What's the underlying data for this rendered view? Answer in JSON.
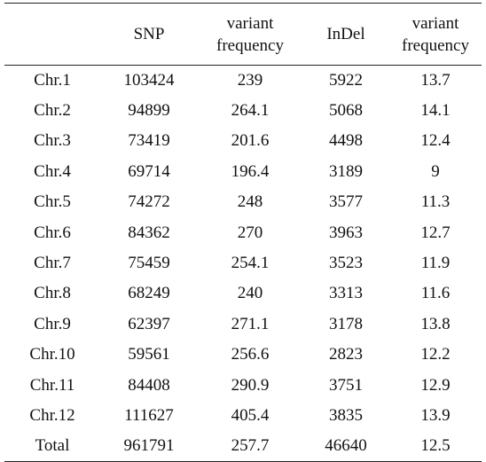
{
  "table": {
    "headers": [
      "",
      "SNP",
      "variant\nfrequency",
      "InDel",
      "variant\nfrequency"
    ],
    "rows": [
      [
        "Chr.1",
        "103424",
        "239",
        "5922",
        "13.7"
      ],
      [
        "Chr.2",
        "94899",
        "264.1",
        "5068",
        "14.1"
      ],
      [
        "Chr.3",
        "73419",
        "201.6",
        "4498",
        "12.4"
      ],
      [
        "Chr.4",
        "69714",
        "196.4",
        "3189",
        "9"
      ],
      [
        "Chr.5",
        "74272",
        "248",
        "3577",
        "11.3"
      ],
      [
        "Chr.6",
        "84362",
        "270",
        "3963",
        "12.7"
      ],
      [
        "Chr.7",
        "75459",
        "254.1",
        "3523",
        "11.9"
      ],
      [
        "Chr.8",
        "68249",
        "240",
        "3313",
        "11.6"
      ],
      [
        "Chr.9",
        "62397",
        "271.1",
        "3178",
        "13.8"
      ],
      [
        "Chr.10",
        "59561",
        "256.6",
        "2823",
        "12.2"
      ],
      [
        "Chr.11",
        "84408",
        "290.9",
        "3751",
        "12.9"
      ],
      [
        "Chr.12",
        "111627",
        "405.4",
        "3835",
        "13.9"
      ],
      [
        "Total",
        "961791",
        "257.7",
        "46640",
        "12.5"
      ]
    ]
  }
}
